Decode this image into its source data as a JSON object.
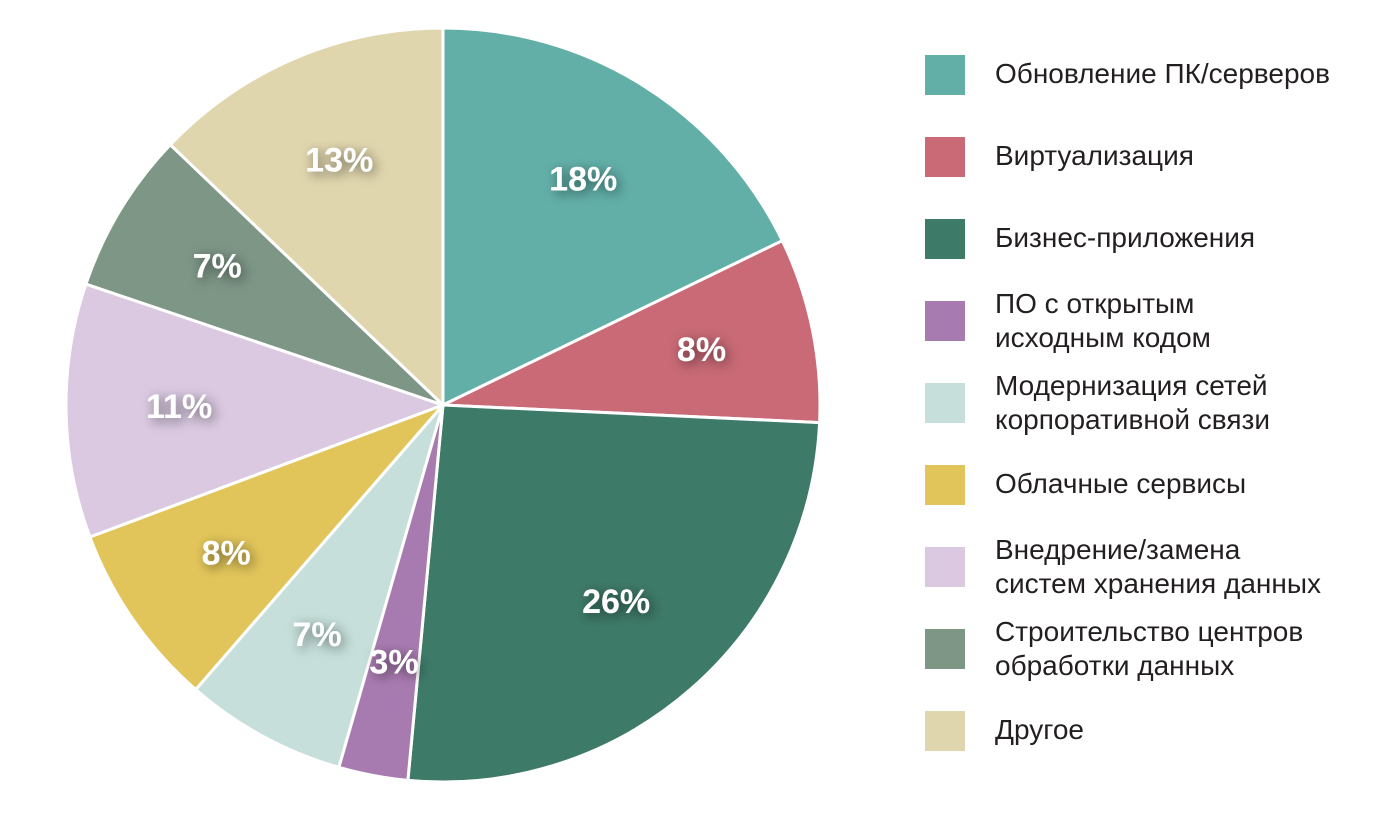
{
  "chart_data": {
    "type": "pie",
    "slices": [
      {
        "label": "Обновление ПК/серверов",
        "value": 18,
        "display": "18%",
        "color": "#62afa8"
      },
      {
        "label": "Виртуализация",
        "value": 8,
        "display": "8%",
        "color": "#c96a76"
      },
      {
        "label": "Бизнес-приложения",
        "value": 26,
        "display": "26%",
        "color": "#3e7a68"
      },
      {
        "label": "ПО с открытым\nисходным кодом",
        "value": 3,
        "display": "3%",
        "color": "#a87bb0"
      },
      {
        "label": "Модернизация сетей\nкорпоративной связи",
        "value": 7,
        "display": "7%",
        "color": "#c6dfda"
      },
      {
        "label": "Облачные сервисы",
        "value": 8,
        "display": "8%",
        "color": "#e2c55a"
      },
      {
        "label": "Внедрение/замена\nсистем хранения данных",
        "value": 11,
        "display": "11%",
        "color": "#dac9e1"
      },
      {
        "label": "Строительство центров\nобработки данных",
        "value": 7,
        "display": "7%",
        "color": "#7d9686"
      },
      {
        "label": "Другое",
        "value": 13,
        "display": "13%",
        "color": "#e0d6ae"
      }
    ],
    "legend_position": "right"
  }
}
